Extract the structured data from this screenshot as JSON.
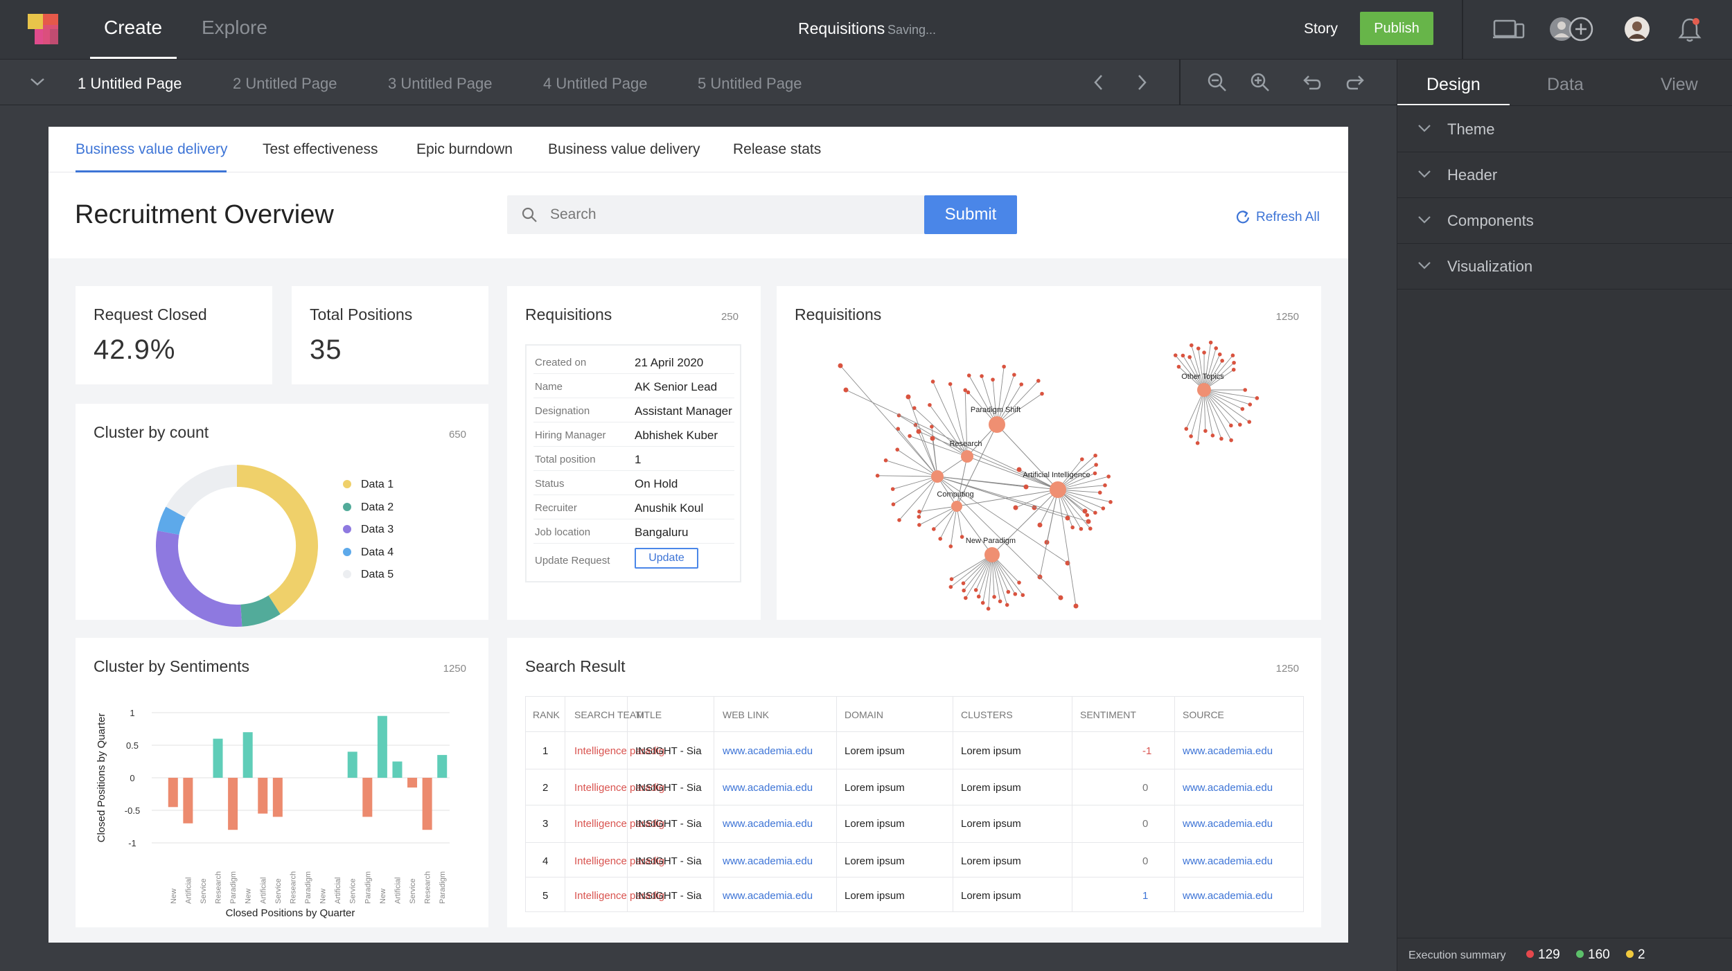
{
  "topbar": {
    "tab_create": "Create",
    "tab_explore": "Explore",
    "doc_title": "Requisitions",
    "saving_status": "Saving...",
    "story_label": "Story",
    "publish_label": "Publish",
    "icons": [
      "device-preview-icon",
      "add-collaborator-icon",
      "user-avatar",
      "bell-icon"
    ]
  },
  "pagebar": {
    "pages": [
      "1 Untitled Page",
      "2 Untitled Page",
      "3 Untitled Page",
      "4 Untitled Page",
      "5 Untitled Page"
    ],
    "active_page": 0
  },
  "right_panel": {
    "tabs": [
      "Design",
      "Data",
      "View"
    ],
    "active_tab": "Design",
    "sections": [
      "Theme",
      "Header",
      "Components",
      "Visualization"
    ],
    "execution_summary": {
      "label": "Execution summary",
      "red": "129",
      "green": "160",
      "yellow": "2"
    }
  },
  "canvas": {
    "subtabs": [
      "Business value delivery",
      "Test effectiveness",
      "Epic burndown",
      "Business value delivery",
      "Release stats"
    ],
    "active_subtab": 0,
    "page_title": "Recruitment Overview",
    "search_placeholder": "Search",
    "submit_label": "Submit",
    "refresh_label": "Refresh All"
  },
  "kpis": {
    "request_closed": {
      "title": "Request Closed",
      "value": "42.9%"
    },
    "total_positions": {
      "title": "Total Positions",
      "value": "35"
    }
  },
  "cluster_by_count": {
    "title": "Cluster by count",
    "count": "650"
  },
  "requisition_card": {
    "title": "Requisitions",
    "count": "250",
    "rows": [
      {
        "key": "Created on",
        "value": "21 April 2020"
      },
      {
        "key": "Name",
        "value": "AK Senior Lead"
      },
      {
        "key": "Designation",
        "value": "Assistant Manager"
      },
      {
        "key": "Hiring Manager",
        "value": "Abhishek Kuber"
      },
      {
        "key": "Total position",
        "value": "1"
      },
      {
        "key": "Status",
        "value": "On Hold"
      },
      {
        "key": "Recruiter",
        "value": "Anushik Koul"
      },
      {
        "key": "Job location",
        "value": "Bangaluru"
      }
    ],
    "update_label": "Update Request",
    "update_button": "Update"
  },
  "graph_card": {
    "title": "Requisitions",
    "count": "1250",
    "node_labels": [
      "Paradigm Shift",
      "Research",
      "Artificial Intelligence",
      "Computing",
      "New Paradigm",
      "Other Topics"
    ]
  },
  "sentiments_card": {
    "title": "Cluster by Sentiments",
    "count": "1250"
  },
  "search_result": {
    "title": "Search Result",
    "count": "1250",
    "columns": [
      "RANK",
      "SEARCH TEAM",
      "TITLE",
      "WEB LINK",
      "DOMAIN",
      "CLUSTERS",
      "SENTIMENT",
      "SOURCE"
    ],
    "rows": [
      {
        "rank": "1",
        "team": "Intelligence paradig",
        "title": "INSIGHT - Sia",
        "link": "www.academia.edu",
        "domain": "Lorem ipsum",
        "clusters": "Lorem ipsum",
        "sentiment": "-1",
        "source": "www.academia.edu"
      },
      {
        "rank": "2",
        "team": "Intelligence paradig",
        "title": "INSIGHT - Sia",
        "link": "www.academia.edu",
        "domain": "Lorem ipsum",
        "clusters": "Lorem ipsum",
        "sentiment": "0",
        "source": "www.academia.edu"
      },
      {
        "rank": "3",
        "team": "Intelligence paradig",
        "title": "INSIGHT - Sia",
        "link": "www.academia.edu",
        "domain": "Lorem ipsum",
        "clusters": "Lorem ipsum",
        "sentiment": "0",
        "source": "www.academia.edu"
      },
      {
        "rank": "4",
        "team": "Intelligence paradig",
        "title": "INSIGHT - Sia",
        "link": "www.academia.edu",
        "domain": "Lorem ipsum",
        "clusters": "Lorem ipsum",
        "sentiment": "0",
        "source": "www.academia.edu"
      },
      {
        "rank": "5",
        "team": "Intelligence paradig",
        "title": "INSIGHT - Sia",
        "link": "www.academia.edu",
        "domain": "Lorem ipsum",
        "clusters": "Lorem ipsum",
        "sentiment": "1",
        "source": "www.academia.edu"
      }
    ]
  },
  "chart_data": [
    {
      "type": "pie",
      "title": "Cluster by count",
      "donut": true,
      "categories": [
        "Data 1",
        "Data 2",
        "Data 3",
        "Data 4",
        "Data 5"
      ],
      "values": [
        41,
        8,
        29,
        5,
        17
      ],
      "colors": [
        "#efd06a",
        "#52ab9a",
        "#8e79e0",
        "#5da9ea",
        "#eceef1"
      ],
      "legend": "right"
    },
    {
      "type": "bar",
      "title": "Cluster by Sentiments",
      "xlabel": "Closed Positions by Quarter",
      "ylabel": "Closed Positions by Quarter",
      "ylim": [
        -1,
        1
      ],
      "yticks": [
        1,
        0.5,
        0,
        -0.5,
        -1
      ],
      "grid": true,
      "categories": [
        "New",
        "Artificial",
        "Service",
        "Research",
        "Paradigm",
        "New",
        "Artificial",
        "Service",
        "Research",
        "Paradigm",
        "New",
        "Artificial",
        "Service",
        "Paradigm",
        "New",
        "Artificial",
        "Service",
        "Research",
        "Paradigm"
      ],
      "series": [
        {
          "color": "#5fcdb8",
          "values": [
            0,
            0,
            0,
            0.6,
            0,
            0.7,
            0,
            0,
            0,
            0,
            0,
            0,
            0.4,
            0,
            0.95,
            0.25,
            0,
            0,
            0.35
          ]
        },
        {
          "color": "#ec8a6e",
          "values": [
            -0.45,
            -0.7,
            0,
            0,
            -0.8,
            0,
            -0.55,
            -0.6,
            0,
            0,
            0,
            0,
            0,
            -0.6,
            0,
            0,
            -0.15,
            -0.8,
            0
          ]
        }
      ]
    }
  ]
}
